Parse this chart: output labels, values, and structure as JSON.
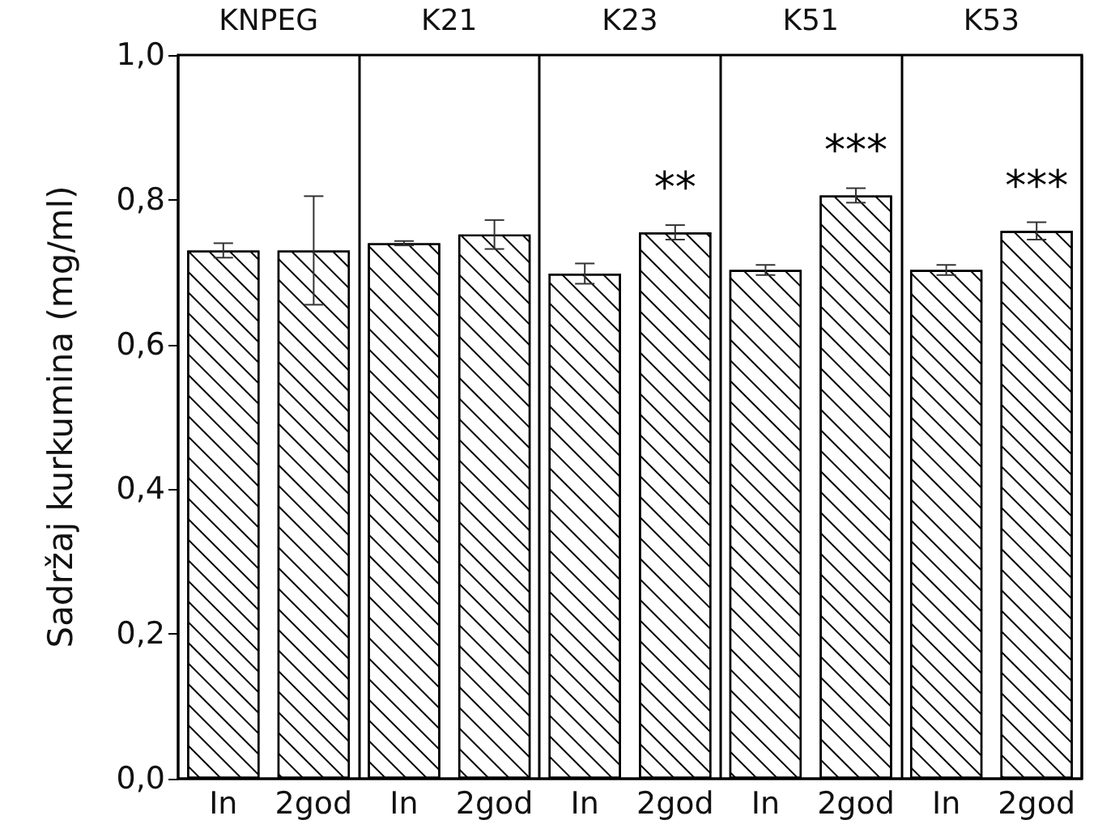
{
  "chart_data": {
    "type": "bar",
    "ylabel": "Sadržaj kurkumina (mg/ml)",
    "categories": [
      "In",
      "2god",
      "In",
      "2god",
      "In",
      "2god",
      "In",
      "2god",
      "In",
      "2god"
    ],
    "values": [
      0.73,
      0.73,
      0.74,
      0.752,
      0.698,
      0.755,
      0.703,
      0.806,
      0.703,
      0.757
    ],
    "errors": [
      0.01,
      0.075,
      0.003,
      0.02,
      0.014,
      0.01,
      0.007,
      0.01,
      0.007,
      0.012
    ],
    "value_labels": [
      null,
      null,
      null,
      null,
      null,
      "**",
      null,
      "***",
      null,
      "***"
    ],
    "color": "#ffffff",
    "annotations": [
      "KNPEG",
      "K21",
      "K23",
      "K51",
      "K53"
    ],
    "ylim": [
      0,
      1
    ],
    "yticks": [
      {
        "value": 0,
        "label": "0,0"
      },
      {
        "value": 0.2,
        "label": "0,2"
      },
      {
        "value": 0.4,
        "label": "0,4"
      },
      {
        "value": 0.6,
        "label": "0,6"
      },
      {
        "value": 0.8,
        "label": "0,8"
      },
      {
        "value": 1,
        "label": "1,0"
      }
    ],
    "grid": "x"
  }
}
